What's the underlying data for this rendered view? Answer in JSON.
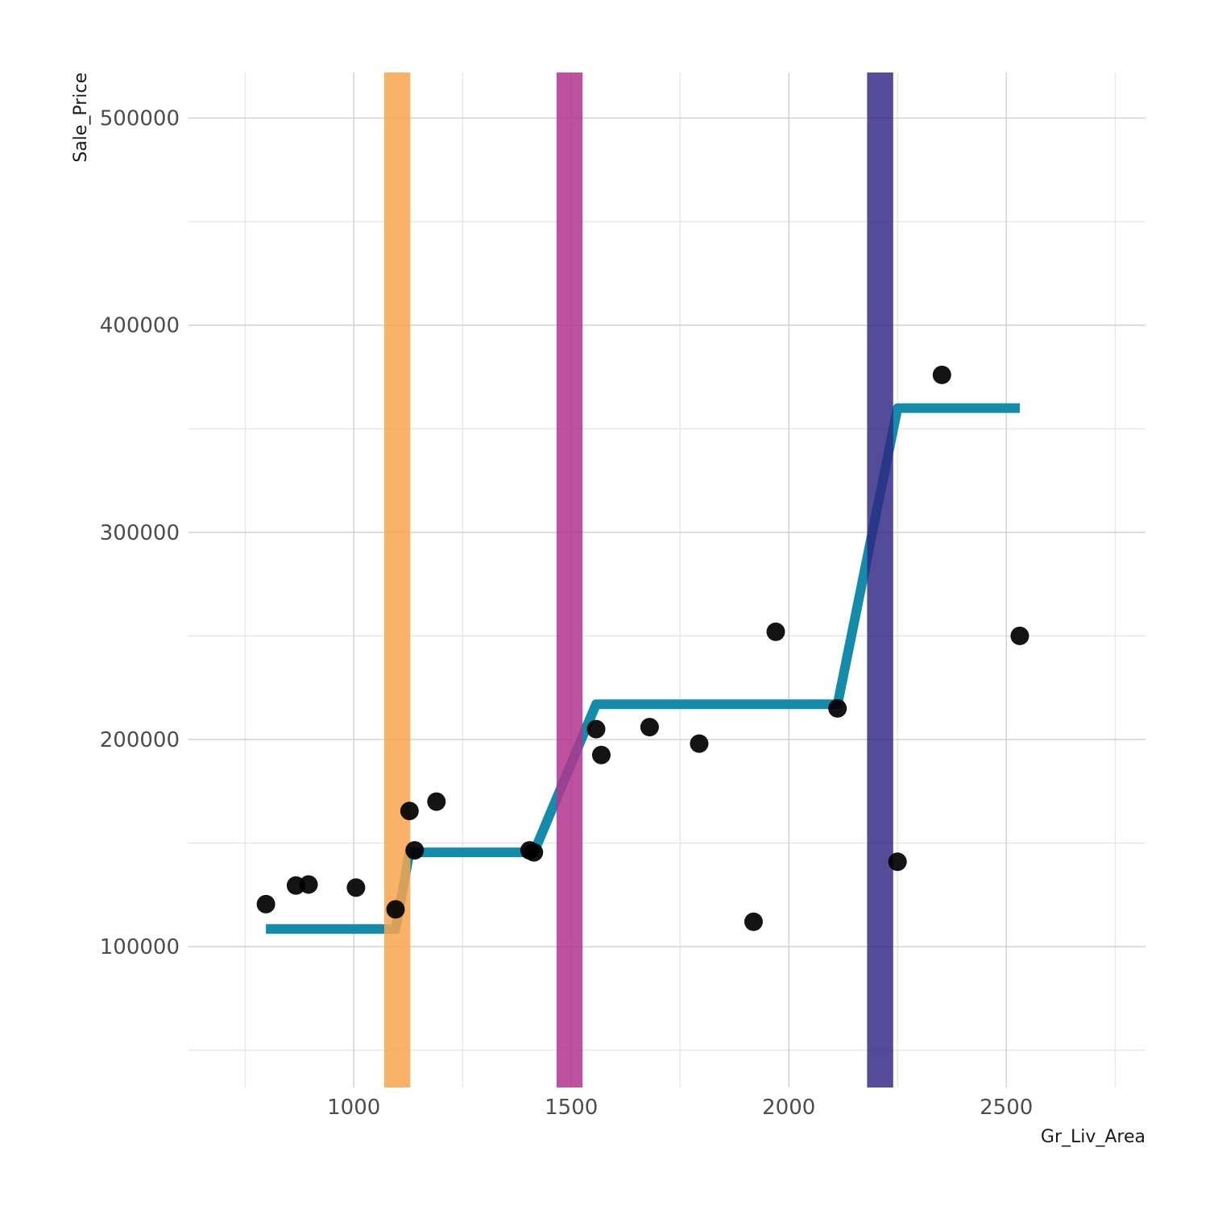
{
  "chart_data": {
    "type": "scatter",
    "xlabel": "Gr_Liv_Area",
    "ylabel": "Sale_Price",
    "xlim": [
      620,
      2820
    ],
    "ylim": [
      32000,
      522000
    ],
    "x_ticks": [
      1000,
      1500,
      2000,
      2500
    ],
    "x_tick_labels": [
      "1000",
      "1500",
      "2000",
      "2500"
    ],
    "x_minor_ticks": [
      750,
      1250,
      1750,
      2250,
      2750
    ],
    "y_ticks": [
      100000,
      200000,
      300000,
      400000,
      500000
    ],
    "y_tick_labels": [
      "100000",
      "200000",
      "300000",
      "400000",
      "500000"
    ],
    "y_minor_ticks": [
      50000,
      150000,
      250000,
      350000,
      450000
    ],
    "grid": true,
    "legend": "none",
    "points": {
      "color": "#000000",
      "x": [
        798,
        867,
        896,
        1005,
        1096,
        1128,
        1140,
        1190,
        1404,
        1414,
        1557,
        1569,
        1680,
        1794,
        1919,
        1970,
        2112,
        2250,
        2352,
        2531
      ],
      "y": [
        120500,
        129500,
        130000,
        128500,
        118000,
        165500,
        146500,
        170000,
        146500,
        145500,
        205000,
        192500,
        206000,
        198000,
        112000,
        252000,
        215000,
        141000,
        376000,
        250000
      ]
    },
    "fit_line": {
      "color": "#148ba8",
      "x": [
        798,
        1096,
        1128,
        1414,
        1557,
        2112,
        2250,
        2531
      ],
      "y": [
        108500,
        108500,
        145500,
        145500,
        217000,
        217000,
        360000,
        360000
      ]
    },
    "bands": [
      {
        "x_min": 1070,
        "x_max": 1130,
        "color": "#f9a54f",
        "opacity": 0.85
      },
      {
        "x_min": 1466,
        "x_max": 1526,
        "color": "#b0348f",
        "opacity": 0.85
      },
      {
        "x_min": 2180,
        "x_max": 2240,
        "color": "#2e2483",
        "opacity": 0.82
      }
    ]
  }
}
